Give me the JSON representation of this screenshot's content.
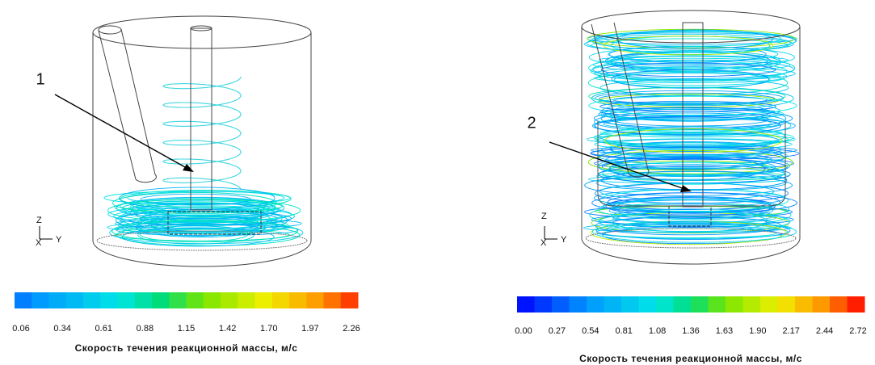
{
  "panels": [
    {
      "label": "1",
      "axes": {
        "z": "Z",
        "y": "Y",
        "x": "X"
      },
      "colorbar": {
        "ticks": [
          "0.06",
          "0.34",
          "0.61",
          "0.88",
          "1.15",
          "1.42",
          "1.70",
          "1.97",
          "2.26"
        ],
        "caption": "Скорость течения реакционной массы, м/с"
      }
    },
    {
      "label": "2",
      "axes": {
        "z": "Z",
        "y": "Y",
        "x": "X"
      },
      "colorbar": {
        "ticks": [
          "0.00",
          "0.27",
          "0.54",
          "0.81",
          "1.08",
          "1.36",
          "1.63",
          "1.90",
          "2.17",
          "2.44",
          "2.72"
        ],
        "caption": "Скорость течения реакционной массы, м/с"
      }
    }
  ]
}
